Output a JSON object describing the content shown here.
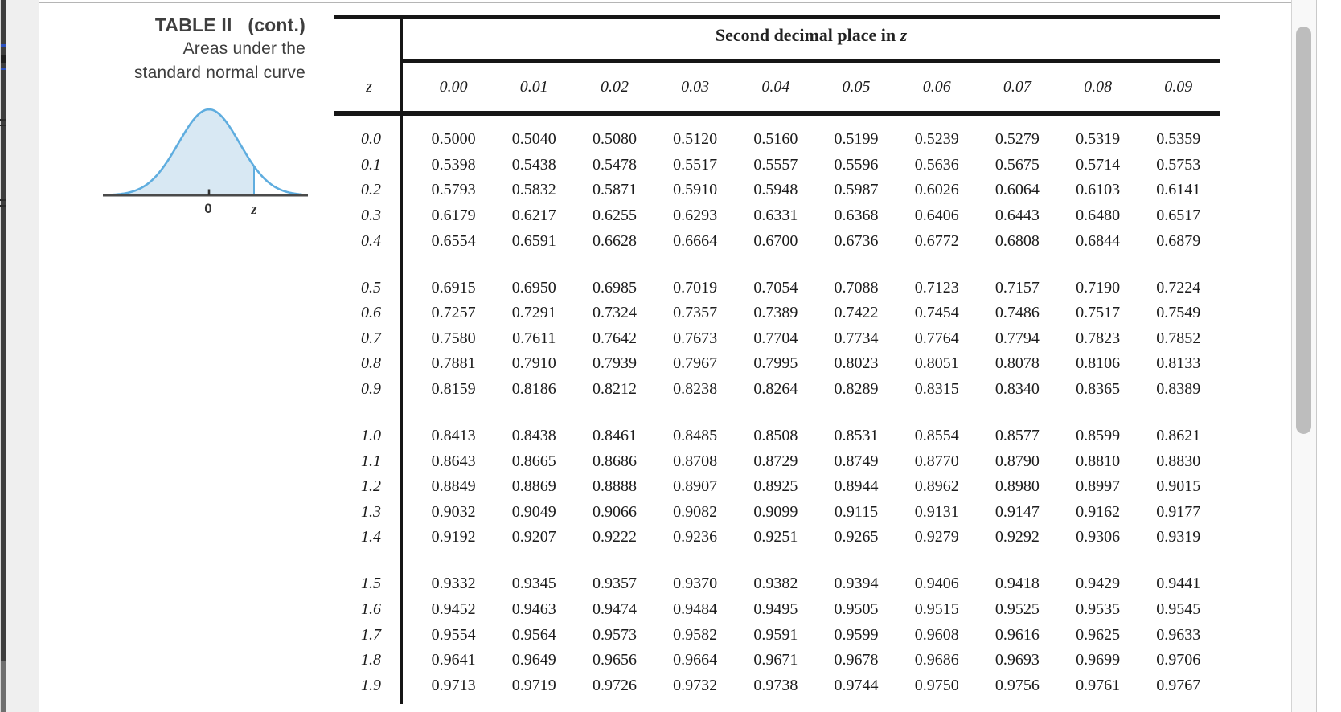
{
  "caption": {
    "line1": "TABLE II   (cont.)",
    "line2": "Areas under the",
    "line3": "standard normal curve"
  },
  "figure": {
    "zero_label": "0",
    "z_label": "z",
    "colors": {
      "curve_stroke": "#5faddf",
      "curve_fill": "#d8e8f3",
      "axis": "#4a4a4a"
    }
  },
  "table": {
    "span_header_prefix": "Second decimal place in ",
    "span_header_z": "z",
    "corner_header": "z",
    "col_headers": [
      "0.00",
      "0.01",
      "0.02",
      "0.03",
      "0.04",
      "0.05",
      "0.06",
      "0.07",
      "0.08",
      "0.09"
    ],
    "rows": [
      {
        "z": "0.0",
        "values": [
          "0.5000",
          "0.5040",
          "0.5080",
          "0.5120",
          "0.5160",
          "0.5199",
          "0.5239",
          "0.5279",
          "0.5319",
          "0.5359"
        ]
      },
      {
        "z": "0.1",
        "values": [
          "0.5398",
          "0.5438",
          "0.5478",
          "0.5517",
          "0.5557",
          "0.5596",
          "0.5636",
          "0.5675",
          "0.5714",
          "0.5753"
        ]
      },
      {
        "z": "0.2",
        "values": [
          "0.5793",
          "0.5832",
          "0.5871",
          "0.5910",
          "0.5948",
          "0.5987",
          "0.6026",
          "0.6064",
          "0.6103",
          "0.6141"
        ]
      },
      {
        "z": "0.3",
        "values": [
          "0.6179",
          "0.6217",
          "0.6255",
          "0.6293",
          "0.6331",
          "0.6368",
          "0.6406",
          "0.6443",
          "0.6480",
          "0.6517"
        ]
      },
      {
        "z": "0.4",
        "values": [
          "0.6554",
          "0.6591",
          "0.6628",
          "0.6664",
          "0.6700",
          "0.6736",
          "0.6772",
          "0.6808",
          "0.6844",
          "0.6879"
        ]
      },
      {
        "z": "0.5",
        "values": [
          "0.6915",
          "0.6950",
          "0.6985",
          "0.7019",
          "0.7054",
          "0.7088",
          "0.7123",
          "0.7157",
          "0.7190",
          "0.7224"
        ]
      },
      {
        "z": "0.6",
        "values": [
          "0.7257",
          "0.7291",
          "0.7324",
          "0.7357",
          "0.7389",
          "0.7422",
          "0.7454",
          "0.7486",
          "0.7517",
          "0.7549"
        ]
      },
      {
        "z": "0.7",
        "values": [
          "0.7580",
          "0.7611",
          "0.7642",
          "0.7673",
          "0.7704",
          "0.7734",
          "0.7764",
          "0.7794",
          "0.7823",
          "0.7852"
        ]
      },
      {
        "z": "0.8",
        "values": [
          "0.7881",
          "0.7910",
          "0.7939",
          "0.7967",
          "0.7995",
          "0.8023",
          "0.8051",
          "0.8078",
          "0.8106",
          "0.8133"
        ]
      },
      {
        "z": "0.9",
        "values": [
          "0.8159",
          "0.8186",
          "0.8212",
          "0.8238",
          "0.8264",
          "0.8289",
          "0.8315",
          "0.8340",
          "0.8365",
          "0.8389"
        ]
      },
      {
        "z": "1.0",
        "values": [
          "0.8413",
          "0.8438",
          "0.8461",
          "0.8485",
          "0.8508",
          "0.8531",
          "0.8554",
          "0.8577",
          "0.8599",
          "0.8621"
        ]
      },
      {
        "z": "1.1",
        "values": [
          "0.8643",
          "0.8665",
          "0.8686",
          "0.8708",
          "0.8729",
          "0.8749",
          "0.8770",
          "0.8790",
          "0.8810",
          "0.8830"
        ]
      },
      {
        "z": "1.2",
        "values": [
          "0.8849",
          "0.8869",
          "0.8888",
          "0.8907",
          "0.8925",
          "0.8944",
          "0.8962",
          "0.8980",
          "0.8997",
          "0.9015"
        ]
      },
      {
        "z": "1.3",
        "values": [
          "0.9032",
          "0.9049",
          "0.9066",
          "0.9082",
          "0.9099",
          "0.9115",
          "0.9131",
          "0.9147",
          "0.9162",
          "0.9177"
        ]
      },
      {
        "z": "1.4",
        "values": [
          "0.9192",
          "0.9207",
          "0.9222",
          "0.9236",
          "0.9251",
          "0.9265",
          "0.9279",
          "0.9292",
          "0.9306",
          "0.9319"
        ]
      },
      {
        "z": "1.5",
        "values": [
          "0.9332",
          "0.9345",
          "0.9357",
          "0.9370",
          "0.9382",
          "0.9394",
          "0.9406",
          "0.9418",
          "0.9429",
          "0.9441"
        ]
      },
      {
        "z": "1.6",
        "values": [
          "0.9452",
          "0.9463",
          "0.9474",
          "0.9484",
          "0.9495",
          "0.9505",
          "0.9515",
          "0.9525",
          "0.9535",
          "0.9545"
        ]
      },
      {
        "z": "1.7",
        "values": [
          "0.9554",
          "0.9564",
          "0.9573",
          "0.9582",
          "0.9591",
          "0.9599",
          "0.9608",
          "0.9616",
          "0.9625",
          "0.9633"
        ]
      },
      {
        "z": "1.8",
        "values": [
          "0.9641",
          "0.9649",
          "0.9656",
          "0.9664",
          "0.9671",
          "0.9678",
          "0.9686",
          "0.9693",
          "0.9699",
          "0.9706"
        ]
      },
      {
        "z": "1.9",
        "values": [
          "0.9713",
          "0.9719",
          "0.9726",
          "0.9732",
          "0.9738",
          "0.9744",
          "0.9750",
          "0.9756",
          "0.9761",
          "0.9767"
        ]
      }
    ]
  }
}
